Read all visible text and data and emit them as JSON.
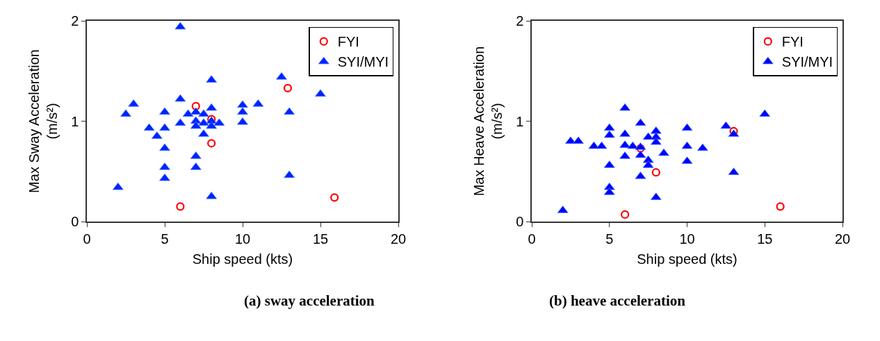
{
  "chart_data": [
    {
      "type": "scatter",
      "title": "(a) sway acceleration",
      "xlabel": "Ship speed (kts)",
      "ylabel": "Max Sway Acceleration\n(m/s²)",
      "xlim": [
        0,
        20
      ],
      "xticks": [
        0,
        5,
        10,
        15,
        20
      ],
      "ylim": [
        0,
        2
      ],
      "yticks": [
        0,
        1,
        2
      ],
      "legend": "top right",
      "series": [
        {
          "name": "FYI",
          "color": "#ff0000",
          "marker": "circle",
          "x": [
            7,
            8,
            8,
            6,
            12.9,
            15.9
          ],
          "values": [
            1.15,
            1.02,
            0.78,
            0.15,
            1.33,
            0.24
          ]
        },
        {
          "name": "SYI/MYI",
          "color": "#0022ff",
          "marker": "triangle",
          "x": [
            6,
            8,
            12.5,
            15,
            3,
            2.5,
            5,
            6,
            6.5,
            7,
            7.5,
            8,
            10,
            10,
            11,
            13,
            6,
            7,
            7,
            7.5,
            8,
            8,
            8.5,
            10,
            4,
            5,
            4.5,
            5,
            7.5,
            7,
            7,
            5,
            5,
            2,
            8,
            13
          ],
          "values": [
            1.94,
            1.41,
            1.44,
            1.27,
            1.17,
            1.07,
            1.09,
            1.22,
            1.07,
            1.09,
            1.07,
            1.13,
            1.16,
            1.09,
            1.17,
            1.09,
            0.98,
            1.0,
            0.95,
            0.98,
            1.0,
            0.95,
            0.98,
            0.99,
            0.93,
            0.93,
            0.85,
            0.73,
            0.87,
            0.65,
            0.54,
            0.54,
            0.43,
            0.34,
            0.25,
            0.46
          ]
        }
      ]
    },
    {
      "type": "scatter",
      "title": "(b) heave acceleration",
      "xlabel": "Ship speed (kts)",
      "ylabel": "Max Heave Acceleration\n(m/s²)",
      "xlim": [
        0,
        20
      ],
      "xticks": [
        0,
        5,
        10,
        15,
        20
      ],
      "ylim": [
        0,
        2
      ],
      "yticks": [
        0,
        1,
        2
      ],
      "legend": "top right",
      "series": [
        {
          "name": "FYI",
          "color": "#ff0000",
          "marker": "circle",
          "x": [
            6,
            8,
            13,
            16,
            7
          ],
          "values": [
            0.07,
            0.49,
            0.9,
            0.15,
            0.73
          ]
        },
        {
          "name": "SYI/MYI",
          "color": "#0000ff",
          "marker": "triangle",
          "x": [
            2,
            2.5,
            3,
            4,
            4.5,
            5,
            5,
            5,
            5,
            5,
            6,
            6,
            6,
            6,
            6.5,
            7,
            7,
            7,
            7,
            7.5,
            7.5,
            7.5,
            8,
            8,
            8,
            8,
            8.5,
            10,
            10,
            10,
            11,
            12.5,
            13,
            13,
            15
          ],
          "values": [
            0.11,
            0.8,
            0.8,
            0.75,
            0.75,
            0.93,
            0.86,
            0.56,
            0.34,
            0.29,
            1.13,
            0.87,
            0.76,
            0.65,
            0.75,
            0.98,
            0.74,
            0.66,
            0.45,
            0.84,
            0.61,
            0.56,
            0.9,
            0.84,
            0.79,
            0.24,
            0.68,
            0.93,
            0.75,
            0.6,
            0.73,
            0.95,
            0.87,
            0.49,
            1.07
          ]
        }
      ]
    }
  ]
}
